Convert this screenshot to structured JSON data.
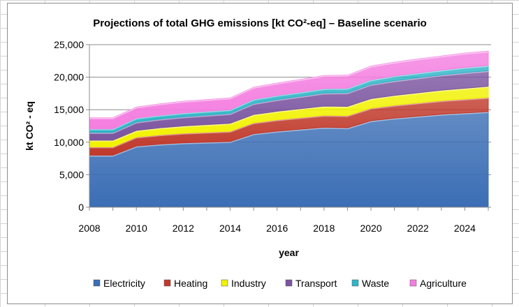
{
  "chart_data": {
    "type": "area",
    "stacked": true,
    "title": "Projections of total GHG emissions  [kt CO²-eq] – Baseline scenario",
    "xlabel": "year",
    "ylabel": "kt CO² - eq",
    "ylim": [
      0,
      25000
    ],
    "yticks": [
      "0",
      "5,000",
      "10,000",
      "15,000",
      "20,000",
      "25,000"
    ],
    "xticks": [
      "2008",
      "2010",
      "2012",
      "2014",
      "2016",
      "2018",
      "2020",
      "2022",
      "2024"
    ],
    "grid": true,
    "legend_position": "bottom",
    "x": [
      2008,
      2009,
      2010,
      2011,
      2012,
      2013,
      2014,
      2015,
      2016,
      2017,
      2018,
      2019,
      2020,
      2021,
      2022,
      2023,
      2024,
      2025
    ],
    "series": [
      {
        "name": "Electricity",
        "color": "#3b6eb5",
        "values": [
          8000,
          8000,
          9400,
          9700,
          9900,
          10000,
          10100,
          11300,
          11700,
          12000,
          12300,
          12200,
          13300,
          13700,
          14000,
          14300,
          14500,
          14700
        ]
      },
      {
        "name": "Heating",
        "color": "#c0392b",
        "values": [
          1300,
          1300,
          1400,
          1450,
          1500,
          1550,
          1600,
          1700,
          1750,
          1800,
          1850,
          1900,
          1950,
          2000,
          2050,
          2100,
          2150,
          2200
        ]
      },
      {
        "name": "Industry",
        "color": "#f2f200",
        "values": [
          1000,
          1000,
          1000,
          1050,
          1100,
          1150,
          1200,
          1250,
          1300,
          1350,
          1400,
          1400,
          1450,
          1500,
          1550,
          1600,
          1650,
          1700
        ]
      },
      {
        "name": "Transport",
        "color": "#7b55a0",
        "values": [
          1200,
          1200,
          1300,
          1350,
          1400,
          1450,
          1500,
          1700,
          1800,
          1900,
          2000,
          2100,
          2200,
          2250,
          2300,
          2350,
          2400,
          2400
        ]
      },
      {
        "name": "Waste",
        "color": "#2fb5c8",
        "values": [
          550,
          550,
          600,
          600,
          600,
          600,
          600,
          650,
          650,
          650,
          700,
          700,
          700,
          750,
          750,
          750,
          800,
          800
        ]
      },
      {
        "name": "Agriculture",
        "color": "#f47ee0",
        "values": [
          1700,
          1700,
          1700,
          1750,
          1800,
          1800,
          1800,
          1850,
          1900,
          1950,
          2000,
          2000,
          2100,
          2100,
          2150,
          2150,
          2200,
          2200
        ]
      }
    ]
  }
}
